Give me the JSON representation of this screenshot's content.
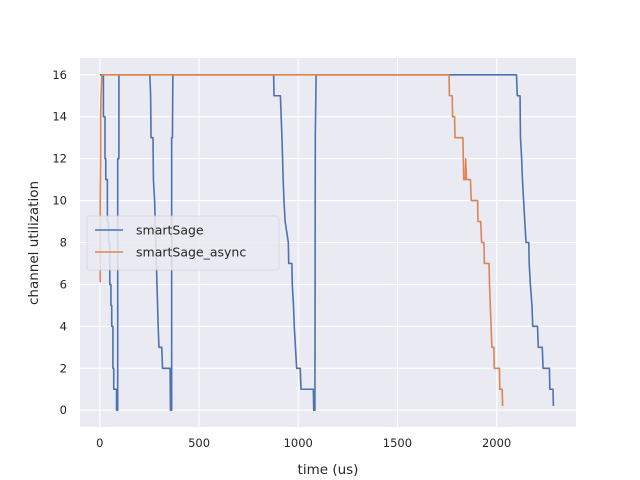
{
  "chart_data": {
    "type": "line",
    "title": "",
    "xlabel": "time (us)",
    "ylabel": "channel utilization",
    "xlim": [
      -100,
      2400
    ],
    "ylim": [
      -0.8,
      16.8
    ],
    "xticks": [
      0,
      500,
      1000,
      1500,
      2000
    ],
    "yticks": [
      0,
      2,
      4,
      6,
      8,
      10,
      12,
      14,
      16
    ],
    "grid": true,
    "legend_position": "center-left",
    "series": [
      {
        "name": "smartSage",
        "color": "#4c72b0",
        "points": [
          [
            0,
            16
          ],
          [
            18,
            16
          ],
          [
            18,
            14
          ],
          [
            26,
            14
          ],
          [
            26,
            12
          ],
          [
            30,
            12
          ],
          [
            30,
            11
          ],
          [
            38,
            11
          ],
          [
            38,
            9
          ],
          [
            44,
            9
          ],
          [
            44,
            8
          ],
          [
            50,
            8
          ],
          [
            50,
            6
          ],
          [
            56,
            6
          ],
          [
            56,
            5
          ],
          [
            60,
            5
          ],
          [
            60,
            4
          ],
          [
            66,
            4
          ],
          [
            66,
            2
          ],
          [
            70,
            2
          ],
          [
            70,
            1
          ],
          [
            84,
            1
          ],
          [
            84,
            0
          ],
          [
            90,
            0
          ],
          [
            90,
            12
          ],
          [
            96,
            12
          ],
          [
            96,
            16
          ],
          [
            252,
            16
          ],
          [
            256,
            15
          ],
          [
            258,
            13
          ],
          [
            268,
            13
          ],
          [
            270,
            11
          ],
          [
            276,
            10
          ],
          [
            282,
            8
          ],
          [
            288,
            6
          ],
          [
            294,
            4
          ],
          [
            298,
            3
          ],
          [
            312,
            3
          ],
          [
            316,
            2
          ],
          [
            354,
            2
          ],
          [
            356,
            0
          ],
          [
            362,
            0
          ],
          [
            362,
            13
          ],
          [
            366,
            13
          ],
          [
            368,
            16
          ],
          [
            876,
            16
          ],
          [
            878,
            15
          ],
          [
            910,
            15
          ],
          [
            914,
            14
          ],
          [
            918,
            13
          ],
          [
            924,
            11
          ],
          [
            928,
            10
          ],
          [
            934,
            9
          ],
          [
            950,
            8
          ],
          [
            952,
            7
          ],
          [
            968,
            7
          ],
          [
            970,
            6
          ],
          [
            976,
            5
          ],
          [
            980,
            4
          ],
          [
            986,
            3
          ],
          [
            992,
            2
          ],
          [
            1010,
            2
          ],
          [
            1014,
            1
          ],
          [
            1076,
            1
          ],
          [
            1078,
            0
          ],
          [
            1084,
            0
          ],
          [
            1086,
            13
          ],
          [
            1090,
            16
          ],
          [
            2100,
            16
          ],
          [
            2104,
            15
          ],
          [
            2118,
            15
          ],
          [
            2120,
            13
          ],
          [
            2126,
            12
          ],
          [
            2130,
            11
          ],
          [
            2136,
            10
          ],
          [
            2142,
            9
          ],
          [
            2148,
            8
          ],
          [
            2162,
            8
          ],
          [
            2164,
            7
          ],
          [
            2170,
            6
          ],
          [
            2178,
            5
          ],
          [
            2182,
            4
          ],
          [
            2206,
            4
          ],
          [
            2210,
            3
          ],
          [
            2230,
            3
          ],
          [
            2234,
            2
          ],
          [
            2266,
            2
          ],
          [
            2268,
            1
          ],
          [
            2284,
            1
          ],
          [
            2286,
            0.2
          ]
        ]
      },
      {
        "name": "smartSage_async",
        "color": "#dd8452",
        "points": [
          [
            2,
            6.1
          ],
          [
            2,
            10
          ],
          [
            4,
            12
          ],
          [
            4,
            14
          ],
          [
            6,
            15
          ],
          [
            10,
            16
          ],
          [
            14,
            16
          ],
          [
            1760,
            16
          ],
          [
            1762,
            15
          ],
          [
            1776,
            15
          ],
          [
            1778,
            14
          ],
          [
            1788,
            14
          ],
          [
            1790,
            13
          ],
          [
            1830,
            13
          ],
          [
            1832,
            12
          ],
          [
            1834,
            11
          ],
          [
            1842,
            11
          ],
          [
            1844,
            12
          ],
          [
            1848,
            11
          ],
          [
            1868,
            11
          ],
          [
            1872,
            10
          ],
          [
            1904,
            10
          ],
          [
            1906,
            9
          ],
          [
            1920,
            9
          ],
          [
            1924,
            8
          ],
          [
            1936,
            8
          ],
          [
            1938,
            7
          ],
          [
            1962,
            7
          ],
          [
            1964,
            6
          ],
          [
            1968,
            5
          ],
          [
            1972,
            4
          ],
          [
            1976,
            3
          ],
          [
            1986,
            3
          ],
          [
            1988,
            2
          ],
          [
            2014,
            2
          ],
          [
            2016,
            1
          ],
          [
            2028,
            1
          ],
          [
            2030,
            0.2
          ]
        ]
      }
    ]
  }
}
